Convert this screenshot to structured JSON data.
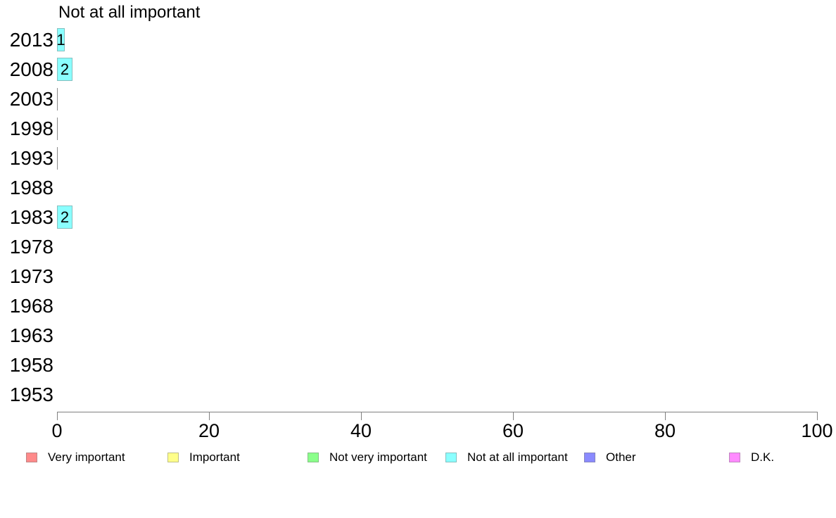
{
  "chart_data": {
    "type": "bar",
    "orientation": "horizontal",
    "title": "Not at all important",
    "xlabel": "",
    "ylabel": "",
    "xlim": [
      0,
      100
    ],
    "x_ticks": [
      "0",
      "20",
      "40",
      "60",
      "80",
      "100"
    ],
    "grid": false,
    "categories": [
      "2013",
      "2008",
      "2003",
      "1998",
      "1993",
      "1988",
      "1983",
      "1978",
      "1973",
      "1968",
      "1963",
      "1958",
      "1953"
    ],
    "values": [
      1,
      2,
      0,
      0,
      0,
      null,
      2,
      null,
      null,
      null,
      null,
      null,
      null
    ],
    "bar_labels": [
      "1",
      "2",
      "",
      "",
      "",
      "",
      "2",
      "",
      "",
      "",
      "",
      "",
      ""
    ],
    "series_name": "Not at all important",
    "series_fill_color": "#8affff",
    "series_border_color": "#85bfbf",
    "zero_bar_color": "#8a8a8a",
    "axis_color": "#808080",
    "legend_position": "bottom",
    "legend": [
      {
        "label": "Very important",
        "color": "#ff8a8a",
        "border": "#bf8585"
      },
      {
        "label": "Important",
        "color": "#ffff8a",
        "border": "#bfbf85"
      },
      {
        "label": "Not very important",
        "color": "#8aff8a",
        "border": "#85bf85"
      },
      {
        "label": "Not at all important",
        "color": "#8affff",
        "border": "#85bfbf"
      },
      {
        "label": "Other",
        "color": "#8a8aff",
        "border": "#8585bf"
      },
      {
        "label": "D.K.",
        "color": "#ff8aff",
        "border": "#bf85bf"
      }
    ]
  }
}
